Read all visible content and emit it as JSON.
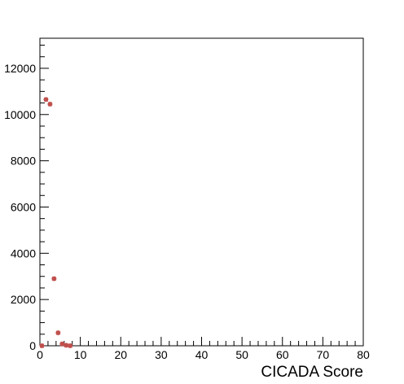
{
  "chart_data": {
    "type": "scatter",
    "title": "",
    "xlabel": "CICADA Score",
    "ylabel": "",
    "xlim": [
      0,
      80
    ],
    "ylim": [
      0,
      13300
    ],
    "grid": false,
    "marker_color": "#c0504d",
    "x_ticks": [
      0,
      10,
      20,
      30,
      40,
      50,
      60,
      70,
      80
    ],
    "y_ticks": [
      0,
      2000,
      4000,
      6000,
      8000,
      10000,
      12000
    ],
    "series": [
      {
        "points": [
          {
            "x": 0.5,
            "y": 0
          },
          {
            "x": 1.5,
            "y": 10650
          },
          {
            "x": 2.5,
            "y": 10450
          },
          {
            "x": 3.5,
            "y": 2900
          },
          {
            "x": 4.5,
            "y": 560
          },
          {
            "x": 5.5,
            "y": 80
          },
          {
            "x": 6.5,
            "y": 20
          },
          {
            "x": 7.5,
            "y": 0
          }
        ]
      }
    ]
  }
}
